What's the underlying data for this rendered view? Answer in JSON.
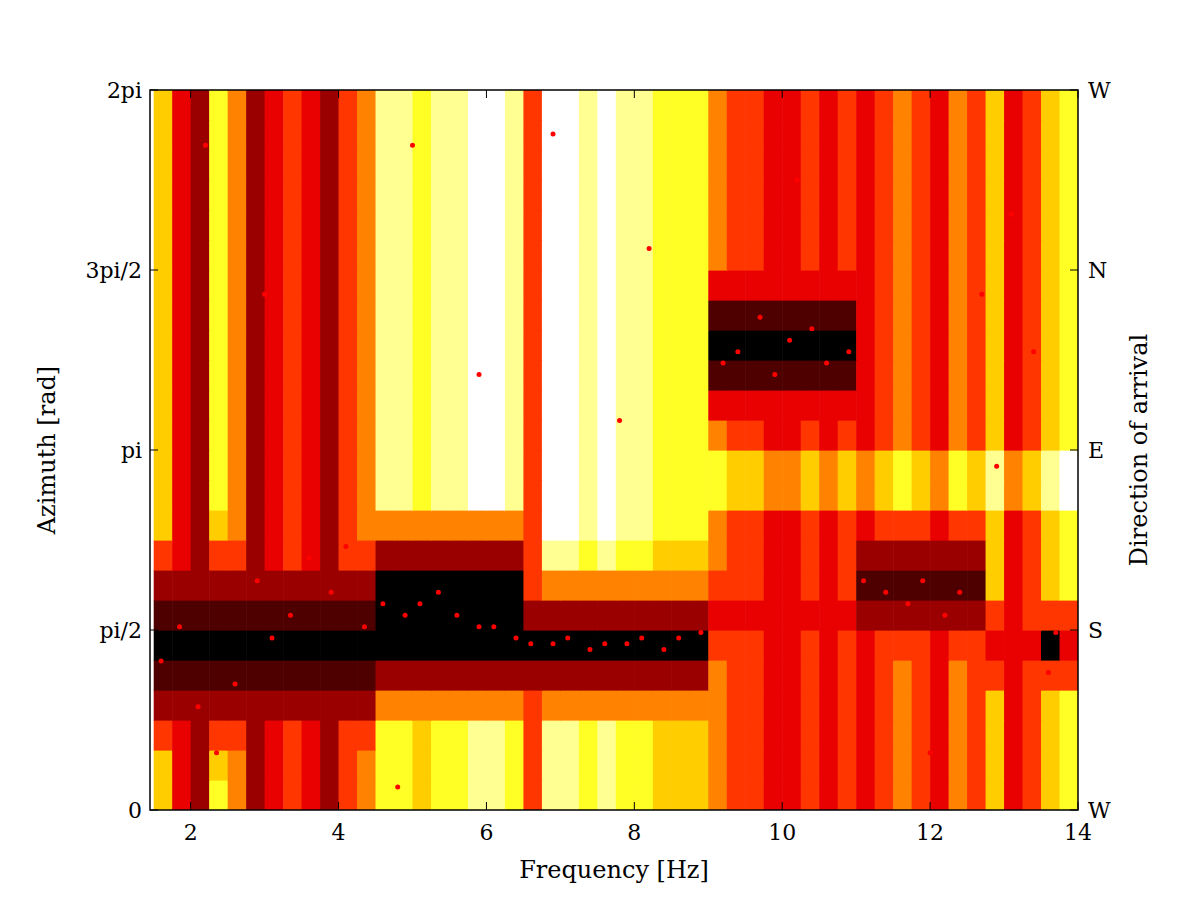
{
  "chart_data": {
    "type": "heatmap",
    "x_label": "Frequency [Hz]",
    "y_label": "Azimuth [rad]",
    "y2_label": "Direction of arrival",
    "xlim": [
      1.45,
      14.0
    ],
    "ylim": [
      0,
      6.2832
    ],
    "y2lim": [
      0,
      6.2832
    ],
    "xticks": [
      2,
      4,
      6,
      8,
      10,
      12,
      14
    ],
    "yticks": [
      0,
      {
        "value": 1.5708,
        "label": "pi/2"
      },
      {
        "value": 3.1416,
        "label": "pi"
      },
      {
        "value": 4.7124,
        "label": "3pi/2"
      },
      {
        "value": 6.2832,
        "label": "2pi"
      }
    ],
    "y2ticks": [
      {
        "value": 0,
        "label": "W"
      },
      {
        "value": 1.5708,
        "label": "S"
      },
      {
        "value": 3.1416,
        "label": "E"
      },
      {
        "value": 4.7124,
        "label": "N"
      },
      {
        "value": 6.2832,
        "label": "W"
      }
    ],
    "clim": [
      0,
      9
    ],
    "x": [
      1.625,
      1.875,
      2.125,
      2.375,
      2.625,
      2.875,
      3.125,
      3.375,
      3.625,
      3.875,
      4.125,
      4.375,
      4.625,
      4.875,
      5.125,
      5.375,
      5.625,
      5.875,
      6.125,
      6.375,
      6.625,
      6.875,
      7.125,
      7.375,
      7.625,
      7.875,
      8.125,
      8.375,
      8.625,
      8.875,
      9.125,
      9.375,
      9.625,
      9.875,
      10.125,
      10.375,
      10.625,
      10.875,
      11.125,
      11.375,
      11.625,
      11.875,
      12.125,
      12.375,
      12.625,
      12.875,
      13.125,
      13.375,
      13.625,
      13.875
    ],
    "y": [
      0.1309,
      0.3927,
      0.6545,
      0.9163,
      1.1781,
      1.4399,
      1.7017,
      1.9635,
      2.2253,
      2.4871,
      2.7489,
      3.0107,
      3.2725,
      3.5343,
      3.7961,
      4.0579,
      4.3197,
      4.5815,
      4.8433,
      5.1051,
      5.3669,
      5.6287,
      5.8905,
      6.1523
    ],
    "cells": [
      [
        3,
        6,
        7,
        2,
        4,
        7,
        6,
        5,
        6,
        7,
        5,
        4,
        2,
        2,
        3,
        2,
        2,
        1,
        1,
        2,
        5,
        1,
        1,
        2,
        1,
        2,
        2,
        3,
        3,
        3,
        4,
        5,
        5,
        6,
        6,
        5,
        6,
        5,
        6,
        5,
        4,
        5,
        6,
        4,
        5,
        3,
        6,
        5,
        3,
        2
      ],
      [
        3,
        6,
        7,
        3,
        4,
        7,
        6,
        5,
        6,
        7,
        5,
        4,
        2,
        2,
        3,
        2,
        2,
        1,
        1,
        2,
        5,
        1,
        1,
        2,
        1,
        2,
        2,
        3,
        3,
        3,
        4,
        5,
        5,
        6,
        6,
        5,
        6,
        5,
        6,
        5,
        4,
        5,
        6,
        4,
        5,
        3,
        6,
        5,
        3,
        2
      ],
      [
        5,
        6,
        7,
        5,
        5,
        7,
        6,
        5,
        6,
        7,
        5,
        5,
        2,
        2,
        3,
        2,
        2,
        1,
        1,
        2,
        5,
        1,
        1,
        2,
        1,
        2,
        2,
        3,
        3,
        3,
        4,
        5,
        5,
        6,
        6,
        5,
        6,
        5,
        6,
        5,
        4,
        5,
        6,
        4,
        5,
        3,
        6,
        5,
        3,
        2
      ],
      [
        7,
        7,
        7,
        7,
        7,
        7,
        7,
        7,
        7,
        7,
        7,
        7,
        4,
        4,
        4,
        4,
        4,
        4,
        4,
        4,
        5,
        4,
        4,
        4,
        4,
        4,
        4,
        4,
        4,
        4,
        4,
        5,
        5,
        6,
        6,
        5,
        6,
        5,
        6,
        5,
        4,
        5,
        6,
        4,
        5,
        3,
        6,
        5,
        3,
        2
      ],
      [
        8,
        8,
        8,
        8,
        8,
        8,
        8,
        8,
        8,
        8,
        8,
        8,
        7,
        7,
        7,
        7,
        7,
        7,
        7,
        7,
        7,
        7,
        7,
        7,
        7,
        7,
        7,
        7,
        7,
        7,
        4,
        5,
        5,
        6,
        6,
        5,
        6,
        5,
        6,
        5,
        4,
        5,
        6,
        4,
        5,
        5,
        6,
        5,
        5,
        5
      ],
      [
        9,
        9,
        9,
        9,
        9,
        9,
        9,
        9,
        9,
        9,
        9,
        9,
        9,
        9,
        9,
        9,
        9,
        9,
        9,
        9,
        9,
        9,
        9,
        9,
        9,
        9,
        9,
        9,
        9,
        9,
        5,
        5,
        5,
        6,
        6,
        5,
        6,
        5,
        6,
        5,
        5,
        5,
        6,
        5,
        5,
        6,
        6,
        6,
        9,
        6
      ],
      [
        8,
        8,
        8,
        8,
        8,
        8,
        8,
        8,
        8,
        8,
        8,
        8,
        9,
        9,
        9,
        9,
        9,
        9,
        9,
        9,
        7,
        7,
        7,
        7,
        7,
        7,
        7,
        7,
        7,
        7,
        6,
        6,
        6,
        6,
        6,
        6,
        6,
        6,
        7,
        7,
        7,
        7,
        7,
        7,
        7,
        5,
        6,
        5,
        5,
        5
      ],
      [
        7,
        7,
        7,
        7,
        7,
        7,
        7,
        7,
        7,
        7,
        7,
        7,
        9,
        9,
        9,
        9,
        9,
        9,
        9,
        9,
        5,
        4,
        4,
        4,
        4,
        4,
        4,
        4,
        4,
        4,
        5,
        5,
        5,
        6,
        6,
        5,
        6,
        5,
        8,
        8,
        8,
        8,
        8,
        8,
        8,
        3,
        6,
        5,
        3,
        2
      ],
      [
        5,
        6,
        7,
        5,
        5,
        7,
        6,
        5,
        6,
        7,
        5,
        5,
        7,
        7,
        7,
        7,
        7,
        7,
        7,
        7,
        5,
        1,
        1,
        2,
        1,
        2,
        2,
        3,
        3,
        3,
        4,
        5,
        5,
        6,
        6,
        5,
        6,
        5,
        7,
        7,
        7,
        7,
        7,
        7,
        7,
        3,
        6,
        5,
        3,
        2
      ],
      [
        3,
        6,
        7,
        3,
        4,
        7,
        6,
        5,
        6,
        7,
        5,
        4,
        4,
        4,
        4,
        4,
        4,
        4,
        4,
        4,
        5,
        0,
        0,
        1,
        0,
        1,
        1,
        2,
        2,
        2,
        4,
        5,
        5,
        6,
        6,
        5,
        6,
        5,
        6,
        5,
        5,
        5,
        6,
        5,
        5,
        3,
        6,
        5,
        3,
        2
      ],
      [
        3,
        6,
        7,
        2,
        4,
        7,
        6,
        5,
        6,
        7,
        5,
        4,
        1,
        1,
        2,
        1,
        1,
        0,
        0,
        1,
        5,
        0,
        0,
        1,
        0,
        1,
        1,
        2,
        2,
        2,
        2,
        3,
        3,
        4,
        4,
        3,
        4,
        3,
        4,
        3,
        2,
        3,
        4,
        2,
        3,
        1,
        4,
        3,
        1,
        0
      ],
      [
        3,
        6,
        7,
        2,
        4,
        7,
        6,
        5,
        6,
        7,
        5,
        4,
        1,
        1,
        2,
        1,
        1,
        0,
        0,
        1,
        5,
        0,
        0,
        1,
        0,
        1,
        1,
        2,
        2,
        2,
        2,
        3,
        3,
        4,
        4,
        3,
        4,
        3,
        4,
        3,
        2,
        3,
        4,
        2,
        3,
        1,
        4,
        3,
        1,
        0
      ],
      [
        3,
        6,
        7,
        2,
        4,
        7,
        6,
        5,
        6,
        7,
        5,
        4,
        1,
        1,
        2,
        1,
        1,
        0,
        0,
        1,
        5,
        0,
        0,
        1,
        0,
        1,
        1,
        2,
        2,
        2,
        4,
        5,
        5,
        6,
        6,
        5,
        6,
        5,
        6,
        5,
        4,
        5,
        6,
        4,
        5,
        3,
        6,
        5,
        3,
        2
      ],
      [
        3,
        6,
        7,
        2,
        4,
        7,
        6,
        5,
        6,
        7,
        5,
        4,
        1,
        1,
        2,
        1,
        1,
        0,
        0,
        1,
        5,
        0,
        0,
        1,
        0,
        1,
        1,
        2,
        2,
        2,
        6,
        6,
        6,
        6,
        6,
        6,
        6,
        6,
        6,
        5,
        4,
        5,
        6,
        4,
        5,
        3,
        6,
        5,
        3,
        2
      ],
      [
        3,
        6,
        7,
        2,
        4,
        7,
        6,
        5,
        6,
        7,
        5,
        4,
        1,
        1,
        2,
        1,
        1,
        0,
        0,
        1,
        5,
        0,
        0,
        1,
        0,
        1,
        1,
        2,
        2,
        2,
        8,
        8,
        8,
        8,
        8,
        8,
        8,
        8,
        6,
        5,
        4,
        5,
        6,
        4,
        5,
        3,
        6,
        5,
        3,
        2
      ],
      [
        3,
        6,
        7,
        2,
        4,
        7,
        6,
        5,
        6,
        7,
        5,
        4,
        1,
        1,
        2,
        1,
        1,
        0,
        0,
        1,
        5,
        0,
        0,
        1,
        0,
        1,
        1,
        2,
        2,
        2,
        9,
        9,
        9,
        9,
        9,
        9,
        9,
        9,
        6,
        5,
        4,
        5,
        6,
        4,
        5,
        3,
        6,
        5,
        3,
        2
      ],
      [
        3,
        6,
        7,
        2,
        4,
        7,
        6,
        5,
        6,
        7,
        5,
        4,
        1,
        1,
        2,
        1,
        1,
        0,
        0,
        1,
        5,
        0,
        0,
        1,
        0,
        1,
        1,
        2,
        2,
        2,
        8,
        8,
        8,
        8,
        8,
        8,
        8,
        8,
        6,
        5,
        4,
        5,
        6,
        4,
        5,
        3,
        6,
        5,
        3,
        2
      ],
      [
        3,
        6,
        7,
        2,
        4,
        7,
        6,
        5,
        6,
        7,
        5,
        4,
        1,
        1,
        2,
        1,
        1,
        0,
        0,
        1,
        5,
        0,
        0,
        1,
        0,
        1,
        1,
        2,
        2,
        2,
        6,
        6,
        6,
        6,
        6,
        6,
        6,
        6,
        6,
        5,
        4,
        5,
        6,
        4,
        5,
        3,
        6,
        5,
        3,
        2
      ],
      [
        3,
        6,
        7,
        2,
        4,
        7,
        6,
        5,
        6,
        7,
        5,
        4,
        1,
        1,
        2,
        1,
        1,
        0,
        0,
        1,
        5,
        0,
        0,
        1,
        0,
        1,
        1,
        2,
        2,
        2,
        4,
        5,
        5,
        6,
        6,
        5,
        6,
        5,
        6,
        5,
        4,
        5,
        6,
        4,
        5,
        3,
        6,
        5,
        3,
        2
      ],
      [
        3,
        6,
        7,
        2,
        4,
        7,
        6,
        5,
        6,
        7,
        5,
        4,
        1,
        1,
        2,
        1,
        1,
        0,
        0,
        1,
        5,
        0,
        0,
        1,
        0,
        1,
        1,
        2,
        2,
        2,
        4,
        5,
        5,
        6,
        6,
        5,
        6,
        5,
        6,
        5,
        4,
        5,
        6,
        4,
        5,
        3,
        6,
        5,
        3,
        2
      ],
      [
        3,
        6,
        7,
        2,
        4,
        7,
        6,
        5,
        6,
        7,
        5,
        4,
        1,
        1,
        2,
        1,
        1,
        0,
        0,
        1,
        5,
        0,
        0,
        1,
        0,
        1,
        1,
        2,
        2,
        2,
        4,
        5,
        5,
        6,
        6,
        5,
        6,
        5,
        6,
        5,
        4,
        5,
        6,
        4,
        5,
        3,
        6,
        5,
        3,
        2
      ],
      [
        3,
        6,
        7,
        2,
        4,
        7,
        6,
        5,
        6,
        7,
        5,
        4,
        1,
        1,
        2,
        1,
        1,
        0,
        0,
        1,
        5,
        0,
        0,
        1,
        0,
        1,
        1,
        2,
        2,
        2,
        4,
        5,
        5,
        6,
        6,
        5,
        6,
        5,
        6,
        5,
        4,
        5,
        6,
        4,
        5,
        3,
        6,
        5,
        3,
        2
      ],
      [
        3,
        6,
        7,
        2,
        4,
        7,
        6,
        5,
        6,
        7,
        5,
        4,
        1,
        1,
        2,
        1,
        1,
        0,
        0,
        1,
        5,
        0,
        0,
        1,
        0,
        1,
        1,
        2,
        2,
        2,
        4,
        5,
        5,
        6,
        6,
        5,
        6,
        5,
        6,
        5,
        4,
        5,
        6,
        4,
        5,
        3,
        6,
        5,
        3,
        2
      ],
      [
        3,
        6,
        7,
        2,
        4,
        7,
        6,
        5,
        6,
        7,
        5,
        4,
        1,
        1,
        2,
        1,
        1,
        0,
        0,
        1,
        5,
        0,
        0,
        1,
        0,
        1,
        1,
        2,
        2,
        2,
        4,
        5,
        5,
        6,
        6,
        5,
        6,
        5,
        6,
        5,
        4,
        5,
        6,
        4,
        5,
        3,
        6,
        5,
        3,
        2
      ]
    ],
    "series": [
      {
        "type": "scatter",
        "color": "#ff0000",
        "marker": "circle",
        "x": [
          1.6,
          1.85,
          2.1,
          2.35,
          2.6,
          2.9,
          3.1,
          3.35,
          3.6,
          3.9,
          4.1,
          4.35,
          4.6,
          4.9,
          5.1,
          5.35,
          5.6,
          5.9,
          6.1,
          6.4,
          6.6,
          6.9,
          7.1,
          7.4,
          7.6,
          7.9,
          8.1,
          8.4,
          8.6,
          8.9,
          9.2,
          9.4,
          9.7,
          9.9,
          10.1,
          10.4,
          10.6,
          10.9,
          11.1,
          11.4,
          11.7,
          11.9,
          12.2,
          12.4,
          12.7,
          12.9,
          13.1,
          13.4,
          13.6,
          13.7,
          2.2,
          3.0,
          5.0,
          7.8,
          5.9,
          10.2,
          12.0,
          4.8,
          6.9,
          8.2
        ],
        "values": [
          1.3,
          1.6,
          0.9,
          0.5,
          1.1,
          2.0,
          1.5,
          1.7,
          2.2,
          1.9,
          2.3,
          1.6,
          1.8,
          1.7,
          1.8,
          1.9,
          1.7,
          1.6,
          1.6,
          1.5,
          1.45,
          1.45,
          1.5,
          1.4,
          1.45,
          1.45,
          1.5,
          1.4,
          1.5,
          1.55,
          3.9,
          4.0,
          4.3,
          3.8,
          4.1,
          4.2,
          3.9,
          4.0,
          2.0,
          1.9,
          1.8,
          2.0,
          1.7,
          1.9,
          4.5,
          3.0,
          5.2,
          4.0,
          1.2,
          1.55,
          5.8,
          4.5,
          5.8,
          3.4,
          3.8,
          5.5,
          0.5,
          0.2,
          5.9,
          4.9
        ]
      }
    ]
  }
}
